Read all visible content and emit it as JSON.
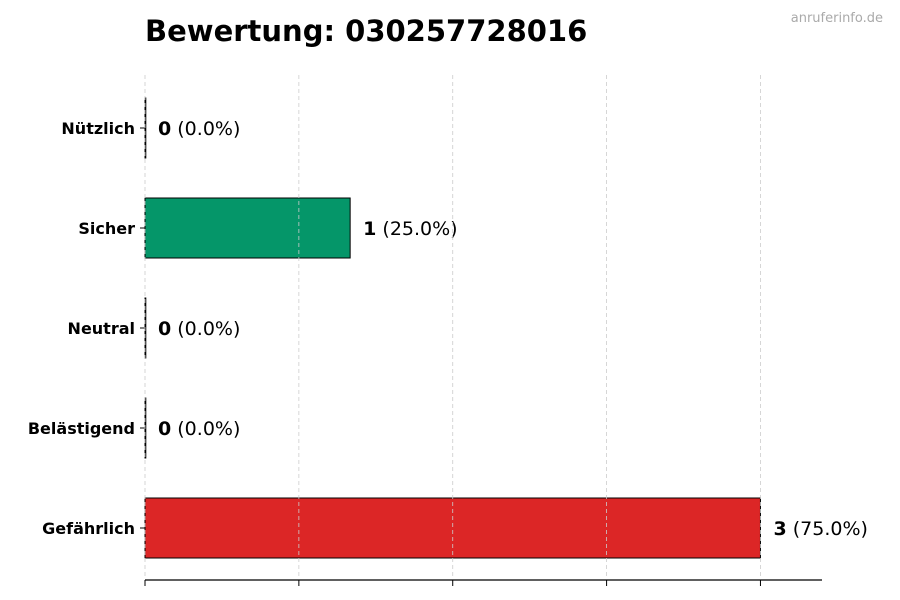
{
  "chart_data": {
    "type": "bar",
    "orientation": "horizontal",
    "title": "Bewertung: 030257728016",
    "watermark": "anruferinfo.de",
    "categories": [
      "Nützlich",
      "Sicher",
      "Neutral",
      "Belästigend",
      "Gefährlich"
    ],
    "values": [
      0,
      1,
      0,
      0,
      3
    ],
    "value_labels": [
      "0",
      "1",
      "0",
      "0",
      "3"
    ],
    "percent_labels": [
      "(0.0%)",
      "(25.0%)",
      "(0.0%)",
      "(0.0%)",
      "(75.0%)"
    ],
    "colors": [
      "#9ca3af",
      "#059669",
      "#9ca3af",
      "#9ca3af",
      "#dc2626"
    ],
    "xlim": [
      0,
      3.3
    ],
    "xticks": [
      0,
      0.75,
      1.5,
      2.25,
      3.0
    ],
    "grid": "x dashed",
    "xlabel": "",
    "ylabel": ""
  }
}
